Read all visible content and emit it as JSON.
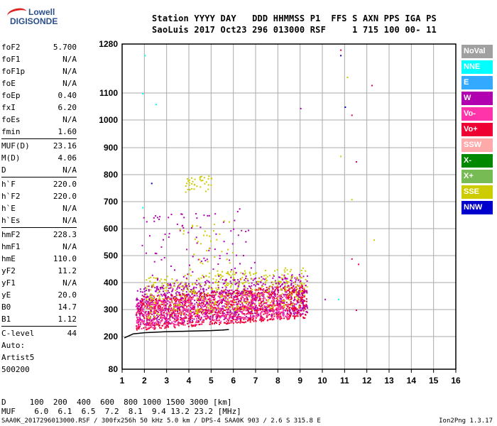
{
  "logo": {
    "line1": "Lowell",
    "line2": "DIGISONDE"
  },
  "header": {
    "line1": "Station YYYY DAY   DDD HHMMSS P1  FFS S AXN PPS IGA PS",
    "line2": "SaoLuis 2017 Oct23 296 013000 RSF     1 715 100 00- 11"
  },
  "params": [
    [
      {
        "label": "foF2",
        "value": "5.700"
      },
      {
        "label": "foF1",
        "value": "N/A"
      },
      {
        "label": "foF1p",
        "value": "N/A"
      },
      {
        "label": "foE",
        "value": "N/A"
      },
      {
        "label": "foEp",
        "value": "0.40"
      },
      {
        "label": "fxI",
        "value": "6.20"
      },
      {
        "label": "foEs",
        "value": "N/A"
      },
      {
        "label": "fmin",
        "value": "1.60"
      }
    ],
    [
      {
        "label": "MUF(D)",
        "value": "23.16"
      },
      {
        "label": "M(D)",
        "value": "4.06"
      },
      {
        "label": "D",
        "value": "N/A"
      }
    ],
    [
      {
        "label": "h`F",
        "value": "220.0"
      },
      {
        "label": "h`F2",
        "value": "220.0"
      },
      {
        "label": "h`E",
        "value": "N/A"
      },
      {
        "label": "h`Es",
        "value": "N/A"
      }
    ],
    [
      {
        "label": "hmF2",
        "value": "228.3"
      },
      {
        "label": "hmF1",
        "value": "N/A"
      },
      {
        "label": "hmE",
        "value": "110.0"
      },
      {
        "label": "yF2",
        "value": "11.2"
      },
      {
        "label": "yF1",
        "value": "N/A"
      },
      {
        "label": "yE",
        "value": "20.0"
      },
      {
        "label": "B0",
        "value": "14.7"
      },
      {
        "label": "B1",
        "value": "1.12"
      }
    ],
    [
      {
        "label": "C-level",
        "value": "44"
      }
    ]
  ],
  "auto": [
    "Auto:",
    "Artist5",
    "500200"
  ],
  "bottom": {
    "line1": "D     100  200  400  600  800 1000 1500 3000 [km]",
    "line2": "MUF    6.0  6.1  6.5  7.2  8.1  9.4 13.2 23.2 [MHz]"
  },
  "footer": {
    "left": "SAA0K_2017296013000.RSF / 300fx256h 50 kHz 5.0 km / DPS-4 SAA0K 903 / 2.6 S 315.8 E",
    "right": "Ion2Png 1.3.17"
  },
  "legend": [
    {
      "label": "NoVal",
      "color": "#a0a0a0"
    },
    {
      "label": "NNE",
      "color": "#00ffff"
    },
    {
      "label": "E",
      "color": "#33aaff"
    },
    {
      "label": "W",
      "color": "#b000b0"
    },
    {
      "label": "Vo-",
      "color": "#ff33aa"
    },
    {
      "label": "Vo+",
      "color": "#ee0033"
    },
    {
      "label": "SSW",
      "color": "#ffaaaa"
    },
    {
      "label": "X-",
      "color": "#008800"
    },
    {
      "label": "X+",
      "color": "#77bb55"
    },
    {
      "label": "SSE",
      "color": "#cccc00"
    },
    {
      "label": "NNW",
      "color": "#0000cc"
    }
  ],
  "chart_data": {
    "type": "scatter",
    "x_ticks": [
      1,
      2,
      3,
      4,
      5,
      6,
      7,
      8,
      9,
      10,
      11,
      12,
      13,
      14,
      15,
      16
    ],
    "y_ticks": [
      80,
      200,
      300,
      400,
      500,
      600,
      700,
      800,
      900,
      1000,
      1100,
      1280
    ],
    "xlim": [
      1,
      16
    ],
    "ylim": [
      80,
      1280
    ],
    "grid": true,
    "trace": {
      "name": "",
      "x": [
        1.1,
        1.5,
        2.0,
        2.5,
        3.0,
        3.5,
        4.0,
        4.5,
        5.0,
        5.5,
        5.8
      ],
      "y": [
        195,
        210,
        214,
        216,
        218,
        219,
        220,
        221,
        222,
        224,
        226
      ]
    },
    "echo_bands": [
      {
        "color": "#ee0033",
        "x0": 1.6,
        "x1": 9.3,
        "y0": 225,
        "y1": 350,
        "density": 0.55
      },
      {
        "color": "#b000b0",
        "x0": 1.6,
        "x1": 9.3,
        "y0": 240,
        "y1": 390,
        "density": 0.35
      },
      {
        "color": "#cccc00",
        "x0": 2.0,
        "x1": 9.3,
        "y0": 270,
        "y1": 420,
        "density": 0.2
      },
      {
        "color": "#ff33aa",
        "x0": 1.6,
        "x1": 8.5,
        "y0": 230,
        "y1": 330,
        "density": 0.2
      },
      {
        "color": "#b000b0",
        "x0": 1.8,
        "x1": 7.0,
        "y0": 390,
        "y1": 650,
        "density": 0.06
      },
      {
        "color": "#cccc00",
        "x0": 3.5,
        "x1": 6.0,
        "y0": 420,
        "y1": 620,
        "density": 0.05
      },
      {
        "color": "#cccc00",
        "x0": 3.8,
        "x1": 5.0,
        "y0": 730,
        "y1": 800,
        "density": 0.1
      }
    ],
    "outliers": [
      {
        "x": 10.8,
        "y": 1260,
        "color": "#ee0033"
      },
      {
        "x": 10.8,
        "y": 1240,
        "color": "#0000cc"
      },
      {
        "x": 11.1,
        "y": 1160,
        "color": "#cccc00"
      },
      {
        "x": 12.2,
        "y": 1130,
        "color": "#ee0033"
      },
      {
        "x": 11.0,
        "y": 1050,
        "color": "#0000cc"
      },
      {
        "x": 11.3,
        "y": 1020,
        "color": "#ee0033"
      },
      {
        "x": 11.5,
        "y": 850,
        "color": "#ee0033"
      },
      {
        "x": 11.3,
        "y": 710,
        "color": "#cccc00"
      },
      {
        "x": 10.8,
        "y": 870,
        "color": "#cccc00"
      },
      {
        "x": 11.3,
        "y": 490,
        "color": "#ee0033"
      },
      {
        "x": 12.3,
        "y": 560,
        "color": "#cccc00"
      },
      {
        "x": 10.1,
        "y": 340,
        "color": "#b000b0"
      },
      {
        "x": 10.7,
        "y": 340,
        "color": "#00ffff"
      },
      {
        "x": 11.5,
        "y": 300,
        "color": "#ee0033"
      },
      {
        "x": 2.3,
        "y": 770,
        "color": "#0000cc"
      },
      {
        "x": 1.9,
        "y": 1100,
        "color": "#00ffff"
      },
      {
        "x": 2.0,
        "y": 1240,
        "color": "#00ffff"
      },
      {
        "x": 2.5,
        "y": 1060,
        "color": "#00ffff"
      },
      {
        "x": 1.9,
        "y": 680,
        "color": "#00ffff"
      },
      {
        "x": 11.6,
        "y": 470,
        "color": "#ee0033"
      },
      {
        "x": 9.0,
        "y": 1045,
        "color": "#b000b0"
      }
    ]
  }
}
